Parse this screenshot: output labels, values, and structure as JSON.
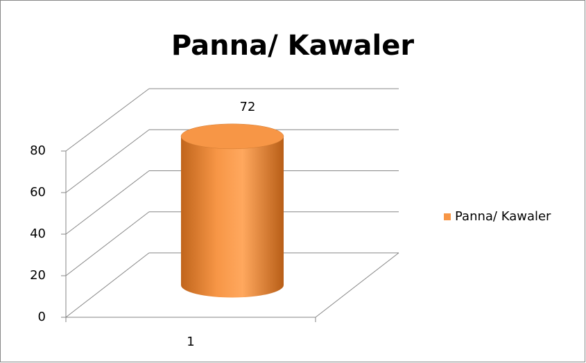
{
  "chart_data": {
    "type": "bar",
    "title": "Panna/ Kawaler",
    "categories": [
      "1"
    ],
    "series": [
      {
        "name": "Panna/ Kawaler",
        "color": "#f79646",
        "values": [
          72
        ]
      }
    ],
    "ylim": [
      0,
      80
    ],
    "yticks": [
      0,
      20,
      40,
      60,
      80
    ],
    "grid": true,
    "legend": "right"
  }
}
